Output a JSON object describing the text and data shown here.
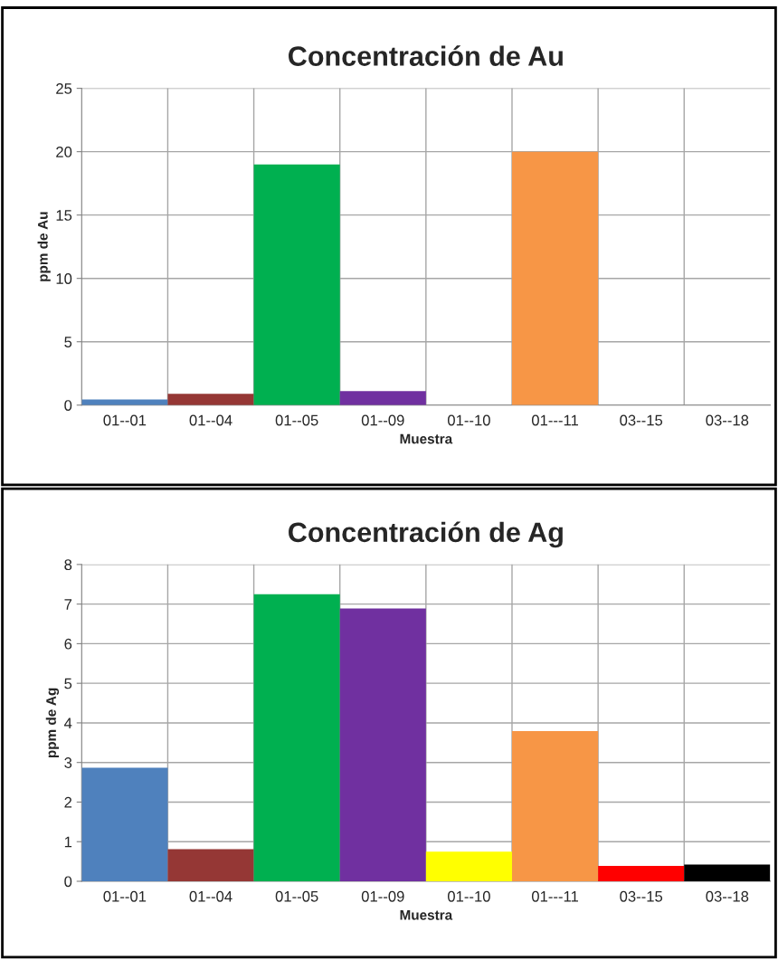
{
  "chart_data": [
    {
      "type": "bar",
      "title": "Concentración de Au",
      "xlabel": "Muestra",
      "ylabel": "ppm de Au",
      "categories": [
        "01--01",
        "01--04",
        "01--05",
        "01--09",
        "01--10",
        "01---11",
        "03--15",
        "03--18"
      ],
      "values": [
        0.45,
        0.9,
        19.0,
        1.1,
        0,
        20.0,
        0,
        0
      ],
      "colors": [
        "#4f81bd",
        "#953735",
        "#00b050",
        "#7030a0",
        "#ffff00",
        "#f79646",
        "#ff0000",
        "#000000"
      ],
      "ylim": [
        0,
        25
      ],
      "yticks": [
        0,
        5,
        10,
        15,
        20,
        25
      ],
      "grid": true,
      "legend": false
    },
    {
      "type": "bar",
      "title": "Concentración de Ag",
      "xlabel": "Muestra",
      "ylabel": "ppm de Ag",
      "categories": [
        "01--01",
        "01--04",
        "01--05",
        "01--09",
        "01--10",
        "01---11",
        "03--15",
        "03--18"
      ],
      "values": [
        2.87,
        0.81,
        7.25,
        6.89,
        0.75,
        3.79,
        0.39,
        0.42
      ],
      "colors": [
        "#4f81bd",
        "#953735",
        "#00b050",
        "#7030a0",
        "#ffff00",
        "#f79646",
        "#ff0000",
        "#000000"
      ],
      "ylim": [
        0,
        8
      ],
      "yticks": [
        0,
        1,
        2,
        3,
        4,
        5,
        6,
        7,
        8
      ],
      "grid": true,
      "legend": false
    }
  ]
}
